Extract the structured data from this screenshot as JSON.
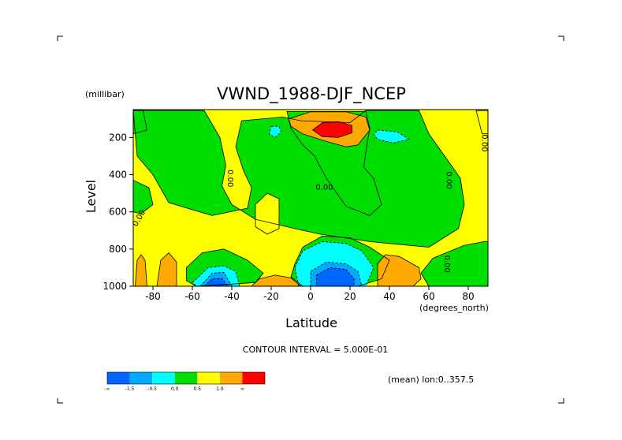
{
  "chart_data": {
    "type": "heatmap",
    "title": "VWND_1988-DJF_NCEP",
    "xlabel": "Latitude",
    "x_units": "(degrees_north)",
    "ylabel": "Level",
    "y_units": "(millibar)",
    "xlim": [
      -90,
      90
    ],
    "ylim": [
      1000,
      50
    ],
    "x_ticks": [
      -80,
      -60,
      -40,
      -20,
      0,
      20,
      40,
      60,
      80
    ],
    "x_tick_labels": [
      "-80",
      "-60",
      "-40",
      "-20",
      "0",
      "20",
      "40",
      "60",
      "80"
    ],
    "y_ticks": [
      200,
      400,
      600,
      800,
      1000
    ],
    "y_tick_labels": [
      "200",
      "400",
      "600",
      "800",
      "1000"
    ],
    "contour_interval_label": "CONTOUR INTERVAL = 5.000E-01",
    "annotation": "(mean) lon:0..357.5",
    "contour_line_labels": [
      "0.00",
      "0.00",
      "0.00",
      "0.00",
      "0.00",
      "0.00"
    ],
    "legend": {
      "colors": [
        "#0066ff",
        "#00aaff",
        "#00ffff",
        "#00dd00",
        "#ffff00",
        "#ffaa00",
        "#ff0000"
      ],
      "tick_labels": [
        "-∞",
        "-1.5",
        "-0.5",
        "0.0",
        "0.5",
        "1.0",
        "∞"
      ]
    },
    "regions": [
      {
        "class": 4,
        "color": "#ffff00",
        "shape": "poly",
        "pts": [
          [
            -90,
            50
          ],
          [
            -90,
            1000
          ],
          [
            90,
            1000
          ],
          [
            90,
            50
          ]
        ]
      },
      {
        "class": 3,
        "color": "#00dd00",
        "shape": "poly",
        "pts": [
          [
            -90,
            55
          ],
          [
            -54,
            55
          ],
          [
            -46,
            200
          ],
          [
            -43,
            350
          ],
          [
            -45,
            460
          ],
          [
            -40,
            560
          ],
          [
            -28,
            640
          ],
          [
            -8,
            690
          ],
          [
            5,
            720
          ],
          [
            30,
            760
          ],
          [
            60,
            790
          ],
          [
            75,
            690
          ],
          [
            78,
            560
          ],
          [
            76,
            420
          ],
          [
            68,
            300
          ],
          [
            60,
            180
          ],
          [
            55,
            55
          ],
          [
            28,
            55
          ],
          [
            20,
            120
          ],
          [
            -5,
            110
          ],
          [
            -14,
            90
          ],
          [
            -35,
            110
          ],
          [
            -38,
            250
          ],
          [
            -34,
            380
          ],
          [
            -30,
            470
          ],
          [
            -32,
            580
          ],
          [
            -50,
            620
          ],
          [
            -72,
            550
          ],
          [
            -80,
            400
          ],
          [
            -88,
            300
          ]
        ]
      },
      {
        "class": 3,
        "color": "#00dd00",
        "shape": "poly",
        "pts": [
          [
            -12,
            60
          ],
          [
            28,
            60
          ],
          [
            30,
            150
          ],
          [
            28,
            280
          ],
          [
            27,
            360
          ],
          [
            32,
            420
          ],
          [
            36,
            560
          ],
          [
            30,
            620
          ],
          [
            18,
            570
          ],
          [
            8,
            420
          ],
          [
            2,
            300
          ],
          [
            -4,
            240
          ],
          [
            -10,
            150
          ]
        ]
      },
      {
        "class": 3,
        "color": "#00dd00",
        "shape": "poly",
        "pts": [
          [
            -90,
            55
          ],
          [
            -85,
            55
          ],
          [
            -83,
            160
          ],
          [
            -90,
            180
          ]
        ]
      },
      {
        "class": 3,
        "color": "#00dd00",
        "shape": "poly",
        "pts": [
          [
            -90,
            430
          ],
          [
            -82,
            470
          ],
          [
            -80,
            560
          ],
          [
            -86,
            610
          ],
          [
            -90,
            600
          ]
        ]
      },
      {
        "class": 3,
        "color": "#00dd00",
        "shape": "poly",
        "pts": [
          [
            -63,
            900
          ],
          [
            -55,
            820
          ],
          [
            -44,
            800
          ],
          [
            -32,
            860
          ],
          [
            -24,
            930
          ],
          [
            -28,
            980
          ],
          [
            -58,
            1000
          ],
          [
            -63,
            970
          ]
        ]
      },
      {
        "class": 3,
        "color": "#00dd00",
        "shape": "poly",
        "pts": [
          [
            -8,
            880
          ],
          [
            -4,
            790
          ],
          [
            6,
            730
          ],
          [
            20,
            740
          ],
          [
            30,
            790
          ],
          [
            40,
            860
          ],
          [
            36,
            960
          ],
          [
            24,
            1000
          ],
          [
            -4,
            1000
          ],
          [
            -10,
            950
          ]
        ]
      },
      {
        "class": 3,
        "color": "#00dd00",
        "shape": "poly",
        "pts": [
          [
            56,
            930
          ],
          [
            62,
            850
          ],
          [
            78,
            780
          ],
          [
            88,
            760
          ],
          [
            90,
            760
          ],
          [
            90,
            1000
          ],
          [
            60,
            1000
          ]
        ]
      },
      {
        "class": 4,
        "color": "#ffff00",
        "shape": "poly",
        "pts": [
          [
            -28,
            560
          ],
          [
            -22,
            500
          ],
          [
            -16,
            530
          ],
          [
            -16,
            690
          ],
          [
            -22,
            720
          ],
          [
            -28,
            680
          ]
        ]
      },
      {
        "class": 4,
        "color": "#ffff00",
        "shape": "poly",
        "pts": [
          [
            84,
            55
          ],
          [
            90,
            55
          ],
          [
            90,
            180
          ],
          [
            87,
            180
          ]
        ]
      },
      {
        "class": 2,
        "color": "#00ffff",
        "shape": "poly",
        "pts": [
          [
            -20,
            140
          ],
          [
            -16,
            140
          ],
          [
            -15,
            170
          ],
          [
            -18,
            200
          ],
          [
            -21,
            180
          ]
        ]
      },
      {
        "class": 2,
        "color": "#00ffff",
        "shape": "poly",
        "pts": [
          [
            34,
            160
          ],
          [
            44,
            170
          ],
          [
            50,
            210
          ],
          [
            42,
            230
          ],
          [
            34,
            210
          ],
          [
            32,
            185
          ]
        ]
      },
      {
        "class": 2,
        "color": "#00ffff",
        "shape": "poly",
        "pts": [
          [
            -8,
            900
          ],
          [
            -4,
            810
          ],
          [
            6,
            760
          ],
          [
            18,
            770
          ],
          [
            26,
            810
          ],
          [
            32,
            900
          ],
          [
            28,
            1000
          ],
          [
            -6,
            1000
          ]
        ]
      },
      {
        "class": 2,
        "color": "#00ffff",
        "shape": "poly",
        "pts": [
          [
            -60,
            980
          ],
          [
            -52,
            900
          ],
          [
            -44,
            890
          ],
          [
            -38,
            920
          ],
          [
            -36,
            1000
          ],
          [
            -58,
            1000
          ]
        ]
      },
      {
        "class": 1,
        "color": "#00aaff",
        "shape": "poly",
        "pts": [
          [
            0,
            920
          ],
          [
            8,
            870
          ],
          [
            18,
            880
          ],
          [
            24,
            920
          ],
          [
            26,
            1000
          ],
          [
            0,
            1000
          ]
        ]
      },
      {
        "class": 1,
        "color": "#00aaff",
        "shape": "poly",
        "pts": [
          [
            -56,
            1000
          ],
          [
            -50,
            930
          ],
          [
            -44,
            925
          ],
          [
            -40,
            1000
          ]
        ]
      },
      {
        "class": 0,
        "color": "#0066ff",
        "shape": "poly",
        "pts": [
          [
            3,
            940
          ],
          [
            10,
            900
          ],
          [
            18,
            910
          ],
          [
            22,
            960
          ],
          [
            22,
            1000
          ],
          [
            3,
            1000
          ]
        ]
      },
      {
        "class": 0,
        "color": "#0066ff",
        "shape": "poly",
        "pts": [
          [
            -54,
            1000
          ],
          [
            -50,
            960
          ],
          [
            -45,
            958
          ],
          [
            -42,
            1000
          ]
        ]
      },
      {
        "class": 5,
        "color": "#ffaa00",
        "shape": "poly",
        "pts": [
          [
            -11,
            100
          ],
          [
            0,
            62
          ],
          [
            18,
            62
          ],
          [
            28,
            90
          ],
          [
            30,
            160
          ],
          [
            24,
            240
          ],
          [
            18,
            250
          ],
          [
            6,
            215
          ],
          [
            -4,
            180
          ],
          [
            -10,
            140
          ]
        ]
      },
      {
        "class": 5,
        "color": "#ffaa00",
        "shape": "poly",
        "pts": [
          [
            -89,
            1000
          ],
          [
            -88,
            860
          ],
          [
            -86,
            830
          ],
          [
            -84,
            860
          ],
          [
            -83,
            1000
          ]
        ]
      },
      {
        "class": 5,
        "color": "#ffaa00",
        "shape": "poly",
        "pts": [
          [
            -78,
            1000
          ],
          [
            -76,
            860
          ],
          [
            -72,
            820
          ],
          [
            -68,
            870
          ],
          [
            -68,
            1000
          ]
        ]
      },
      {
        "class": 5,
        "color": "#ffaa00",
        "shape": "poly",
        "pts": [
          [
            -30,
            1000
          ],
          [
            -26,
            960
          ],
          [
            -18,
            940
          ],
          [
            -10,
            955
          ],
          [
            -5,
            1000
          ]
        ]
      },
      {
        "class": 5,
        "color": "#ffaa00",
        "shape": "poly",
        "pts": [
          [
            34,
            1000
          ],
          [
            34,
            880
          ],
          [
            38,
            830
          ],
          [
            45,
            840
          ],
          [
            55,
            900
          ],
          [
            56,
            960
          ],
          [
            52,
            1000
          ]
        ]
      },
      {
        "class": 6,
        "color": "#ff0000",
        "shape": "poly",
        "pts": [
          [
            1,
            160
          ],
          [
            6,
            120
          ],
          [
            14,
            115
          ],
          [
            21,
            135
          ],
          [
            21,
            175
          ],
          [
            14,
            200
          ],
          [
            6,
            195
          ]
        ]
      }
    ]
  }
}
